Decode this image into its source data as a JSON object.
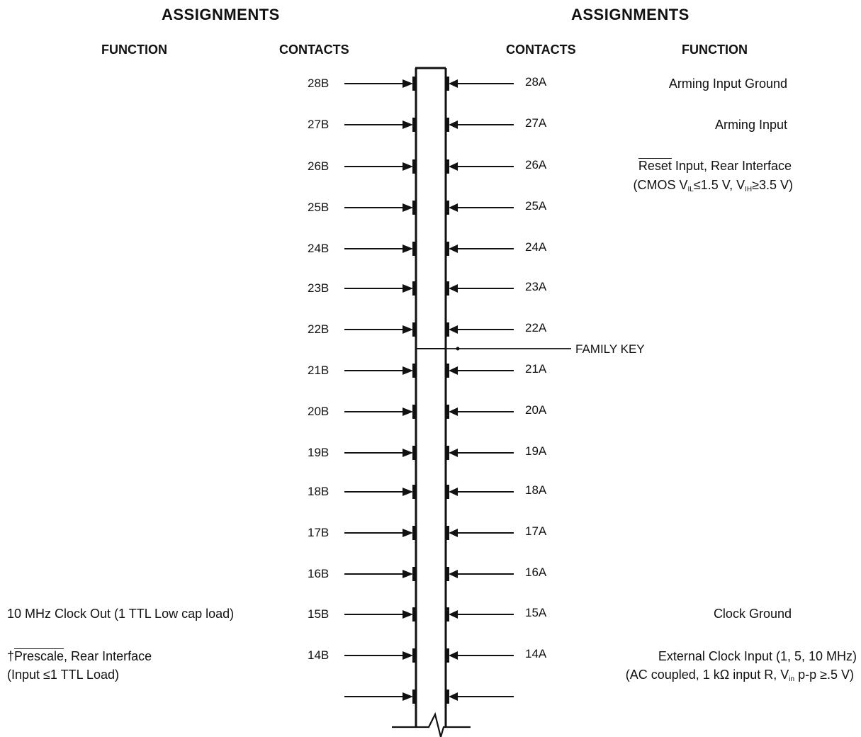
{
  "headers": {
    "left_assignments": "ASSIGNMENTS",
    "right_assignments": "ASSIGNMENTS",
    "left_function": "FUNCTION",
    "left_contacts": "CONTACTS",
    "right_contacts": "CONTACTS",
    "right_function": "FUNCTION"
  },
  "family_key": "FAMILY KEY",
  "rows": [
    {
      "b": "28B",
      "a": "28A"
    },
    {
      "b": "27B",
      "a": "27A"
    },
    {
      "b": "26B",
      "a": "26A"
    },
    {
      "b": "25B",
      "a": "25A"
    },
    {
      "b": "24B",
      "a": "24A"
    },
    {
      "b": "23B",
      "a": "23A"
    },
    {
      "b": "22B",
      "a": "22A"
    },
    {
      "b": "21B",
      "a": "21A"
    },
    {
      "b": "20B",
      "a": "20A"
    },
    {
      "b": "19B",
      "a": "19A"
    },
    {
      "b": "18B",
      "a": "18A"
    },
    {
      "b": "17B",
      "a": "17A"
    },
    {
      "b": "16B",
      "a": "16A"
    },
    {
      "b": "15B",
      "a": "15A"
    },
    {
      "b": "14B",
      "a": "14A"
    }
  ],
  "functions": {
    "r28a": "Arming Input Ground",
    "r27a": "Arming Input",
    "r26a_reset": "Reset",
    "r26a_rest": " Input, Rear Interface",
    "r26a_l2_pre": "(CMOS V",
    "r26a_l2_sub1": "IL",
    "r26a_l2_mid": "≤1.5 V, V",
    "r26a_l2_sub2": "IH",
    "r26a_l2_post": "≥3.5 V)",
    "r15b": "10 MHz Clock Out  (1 TTL Low cap load)",
    "r15a": "Clock Ground",
    "r14b_dagger": "†",
    "r14b_prescale": "Prescale",
    "r14b_rest": ", Rear Interface",
    "r14b_l2": "(Input ≤1 TTL Load)",
    "r14a_l1": "External Clock Input (1, 5, 10 MHz)",
    "r14a_l2_pre": "(AC coupled, 1 kΩ input R, V",
    "r14a_l2_sub": "in",
    "r14a_l2_post": " p-p ≥.5 V)"
  }
}
